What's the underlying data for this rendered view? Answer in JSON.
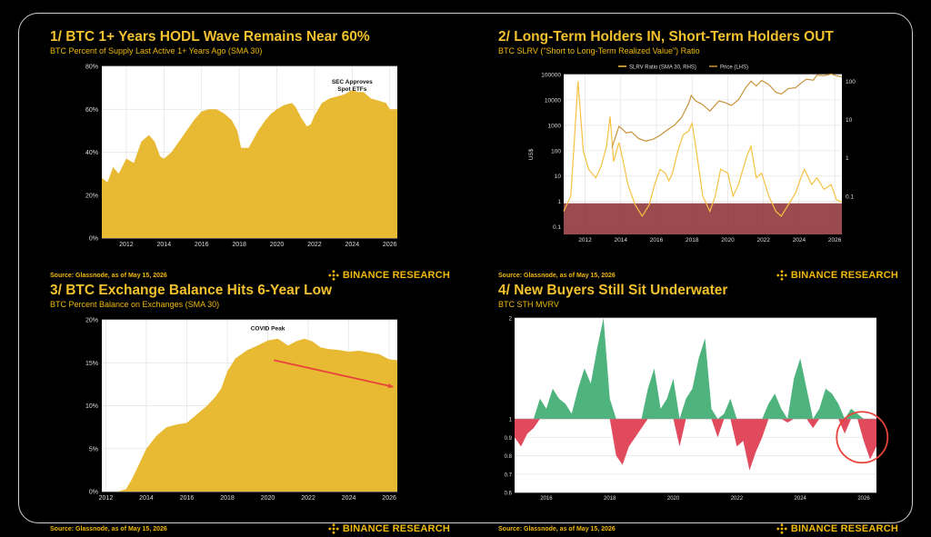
{
  "brand": {
    "name": "BINANCE RESEARCH",
    "gold": "#F0B90B"
  },
  "panels": [
    {
      "title": "1/ BTC 1+ Years HODL Wave Remains Near 60%",
      "subtitle": "BTC Percent of Supply Last Active 1+ Years Ago (SMA 30)",
      "source": "Source: Glassnode, as of May 15, 2026"
    },
    {
      "title": "2/ Long-Term Holders IN, Short-Term Holders OUT",
      "subtitle": "BTC SLRV (\"Short to Long-Term Realized Value\") Ratio",
      "source": "Source: Glassnode, as of May 15, 2026"
    },
    {
      "title": "3/ BTC Exchange Balance Hits 6-Year Low",
      "subtitle": "BTC Percent Balance on Exchanges (SMA 30)",
      "source": "Source: Glassnode, as of May 15, 2026"
    },
    {
      "title": "4/ New Buyers Still Sit Underwater",
      "subtitle": "BTC STH MVRV",
      "source": "Source: Glassnode, as of May 15, 2026"
    }
  ],
  "chart_data": [
    {
      "type": "area",
      "xlim": [
        2010.7,
        2026.4
      ],
      "ylim": [
        0,
        80
      ],
      "yticks": [
        0,
        20,
        40,
        60,
        80
      ],
      "ytick_labels": [
        "0%",
        "20%",
        "40%",
        "60%",
        "80%"
      ],
      "xtick_labels": [
        "2012",
        "2014",
        "2016",
        "2018",
        "2020",
        "2022",
        "2024",
        "2026"
      ],
      "grid": true,
      "color": "#E8B932",
      "annotation": {
        "text": [
          "SEC Approves",
          "Spot ETFs"
        ],
        "x": 2024.0,
        "y": 72
      },
      "x": [
        2010.7,
        2011.0,
        2011.3,
        2011.6,
        2012.0,
        2012.4,
        2012.8,
        2013.2,
        2013.5,
        2013.8,
        2014.0,
        2014.4,
        2014.8,
        2015.2,
        2015.6,
        2016.0,
        2016.4,
        2016.8,
        2017.2,
        2017.6,
        2017.9,
        2018.1,
        2018.5,
        2019.0,
        2019.4,
        2019.7,
        2020.0,
        2020.4,
        2020.8,
        2021.0,
        2021.3,
        2021.6,
        2021.8,
        2022.0,
        2022.4,
        2022.8,
        2023.2,
        2023.6,
        2024.0,
        2024.3,
        2024.6,
        2025.0,
        2025.4,
        2025.8,
        2026.0,
        2026.4
      ],
      "values": [
        28,
        26,
        33,
        30,
        37,
        35,
        45,
        48,
        45,
        38,
        37,
        40,
        45,
        50,
        55,
        59,
        60,
        60,
        58,
        55,
        50,
        42,
        42,
        50,
        55,
        58,
        60,
        62,
        63,
        61,
        56,
        52,
        53,
        57,
        63,
        65,
        66,
        67,
        69,
        68,
        68,
        65,
        64,
        63,
        60,
        60
      ]
    },
    {
      "type": "line",
      "xlim": [
        2010.8,
        2026.4
      ],
      "ylabel": "US$",
      "left_yscale": "log",
      "left_ylim": [
        0.05,
        100000
      ],
      "left_yticks": [
        0.1,
        1,
        10,
        100,
        1000,
        10000,
        100000
      ],
      "left_ytick_labels": [
        "0.1",
        "1",
        "10",
        "100",
        "1000",
        "10000",
        "100000"
      ],
      "right_yscale": "log",
      "right_ylim": [
        0.01,
        150
      ],
      "right_yticks": [
        0.1,
        1,
        10,
        100
      ],
      "right_ytick_labels": [
        "0.1",
        "1",
        "10",
        "100"
      ],
      "xtick_labels": [
        "2012",
        "2014",
        "2016",
        "2018",
        "2020",
        "2022",
        "2024",
        "2026"
      ],
      "legend_placement": "top",
      "band": {
        "right_from": 0.01,
        "right_to": 0.065,
        "color": "#8a2a30"
      },
      "series": [
        {
          "name": "SLRV Ratio (SMA 30, RHS)",
          "axis": "right",
          "color": "#F5C242",
          "x": [
            2010.8,
            2011.2,
            2011.4,
            2011.6,
            2011.9,
            2012.2,
            2012.6,
            2012.9,
            2013.2,
            2013.4,
            2013.6,
            2013.9,
            2014.1,
            2014.4,
            2014.8,
            2015.2,
            2015.6,
            2015.9,
            2016.2,
            2016.5,
            2016.7,
            2016.9,
            2017.2,
            2017.5,
            2017.8,
            2018.0,
            2018.2,
            2018.6,
            2019.0,
            2019.3,
            2019.6,
            2020.0,
            2020.3,
            2020.6,
            2020.9,
            2021.1,
            2021.3,
            2021.6,
            2021.9,
            2022.3,
            2022.7,
            2023.0,
            2023.4,
            2023.8,
            2024.1,
            2024.3,
            2024.7,
            2025.0,
            2025.4,
            2025.8,
            2026.1,
            2026.4
          ],
          "values": [
            0.04,
            0.1,
            3.0,
            100.0,
            1.5,
            0.5,
            0.3,
            0.6,
            2.0,
            12.0,
            0.8,
            2.5,
            1.0,
            0.2,
            0.06,
            0.03,
            0.06,
            0.2,
            0.5,
            0.4,
            0.25,
            0.4,
            1.5,
            4.0,
            5.0,
            8.0,
            2.0,
            0.1,
            0.04,
            0.1,
            0.5,
            0.4,
            0.1,
            0.2,
            0.6,
            1.2,
            2.0,
            0.3,
            0.4,
            0.1,
            0.04,
            0.03,
            0.06,
            0.12,
            0.3,
            0.5,
            0.2,
            0.3,
            0.15,
            0.2,
            0.08,
            0.07
          ]
        },
        {
          "name": "Price (LHS)",
          "axis": "left",
          "color": "#C8923A",
          "x": [
            2013.5,
            2013.9,
            2014.0,
            2014.3,
            2014.6,
            2015.0,
            2015.4,
            2015.8,
            2016.2,
            2016.6,
            2017.0,
            2017.4,
            2017.8,
            2017.95,
            2018.2,
            2018.6,
            2019.0,
            2019.5,
            2019.8,
            2020.2,
            2020.6,
            2021.0,
            2021.3,
            2021.6,
            2021.9,
            2022.3,
            2022.7,
            2023.0,
            2023.4,
            2023.8,
            2024.1,
            2024.4,
            2024.8,
            2025.0,
            2025.4,
            2025.8,
            2026.1,
            2026.4
          ],
          "values": [
            130,
            900,
            800,
            500,
            550,
            300,
            240,
            280,
            400,
            650,
            1000,
            2000,
            7000,
            15000,
            9000,
            6500,
            3600,
            9000,
            8000,
            6000,
            10000,
            30000,
            55000,
            35000,
            58000,
            40000,
            20000,
            17000,
            28000,
            30000,
            45000,
            65000,
            60000,
            95000,
            90000,
            105000,
            90000,
            80000
          ]
        }
      ]
    },
    {
      "type": "area",
      "xlim": [
        2011.8,
        2026.4
      ],
      "ylim": [
        0,
        20
      ],
      "yticks": [
        0,
        5,
        10,
        15,
        20
      ],
      "ytick_labels": [
        "0%",
        "5%",
        "10%",
        "15%",
        "20%"
      ],
      "xtick_labels": [
        "2012",
        "2014",
        "2016",
        "2018",
        "2020",
        "2022",
        "2024",
        "2026"
      ],
      "grid": true,
      "color": "#E8B932",
      "annotation": {
        "text": [
          "COVID Peak"
        ],
        "x": 2020.0,
        "y": 18.8
      },
      "arrow": {
        "from": [
          2020.3,
          15.3
        ],
        "to": [
          2026.2,
          12.2
        ],
        "color": "#E8433A"
      },
      "x": [
        2011.8,
        2012.6,
        2013.0,
        2013.3,
        2013.6,
        2014.0,
        2014.5,
        2015.0,
        2015.5,
        2016.0,
        2016.5,
        2017.0,
        2017.4,
        2017.7,
        2018.0,
        2018.4,
        2019.0,
        2019.5,
        2020.0,
        2020.5,
        2021.0,
        2021.4,
        2021.8,
        2022.2,
        2022.6,
        2023.0,
        2023.5,
        2024.0,
        2024.5,
        2025.0,
        2025.5,
        2026.0,
        2026.4
      ],
      "values": [
        0,
        0,
        0.3,
        1.5,
        3.0,
        5.0,
        6.5,
        7.5,
        7.8,
        8.0,
        9.0,
        10.0,
        11.0,
        12.0,
        14.0,
        15.5,
        16.5,
        17.0,
        17.6,
        17.8,
        17.0,
        17.5,
        17.8,
        17.5,
        16.8,
        16.6,
        16.5,
        16.3,
        16.4,
        16.2,
        16.0,
        15.4,
        15.3
      ]
    },
    {
      "type": "area",
      "xlim": [
        2015.0,
        2026.4
      ],
      "ylim": [
        0.6,
        2.0
      ],
      "baseline": 1.0,
      "yticks": [
        0.6,
        0.7,
        0.8,
        0.9,
        1.0,
        2.0
      ],
      "ytick_labels": [
        "0.6",
        "0.7",
        "0.8",
        "0.9",
        "1",
        "2"
      ],
      "xtick_labels": [
        "2016",
        "2018",
        "2020",
        "2022",
        "2024",
        "2026"
      ],
      "grid": true,
      "above_color": "#4FB37E",
      "below_color": "#E04A5C",
      "highlight_circle": {
        "x": 2025.95,
        "y": 0.9,
        "color": "#E8433A"
      },
      "x": [
        2015.0,
        2015.2,
        2015.4,
        2015.6,
        2015.8,
        2016.0,
        2016.2,
        2016.4,
        2016.6,
        2016.8,
        2017.0,
        2017.2,
        2017.4,
        2017.6,
        2017.8,
        2018.0,
        2018.2,
        2018.4,
        2018.6,
        2018.8,
        2019.0,
        2019.2,
        2019.4,
        2019.6,
        2019.8,
        2020.0,
        2020.2,
        2020.4,
        2020.6,
        2020.8,
        2021.0,
        2021.2,
        2021.4,
        2021.6,
        2021.8,
        2022.0,
        2022.2,
        2022.4,
        2022.6,
        2022.8,
        2023.0,
        2023.2,
        2023.4,
        2023.6,
        2023.8,
        2024.0,
        2024.2,
        2024.4,
        2024.6,
        2024.8,
        2025.0,
        2025.2,
        2025.4,
        2025.6,
        2025.8,
        2026.0,
        2026.2,
        2026.4
      ],
      "values": [
        0.9,
        0.85,
        0.92,
        0.95,
        1.2,
        1.1,
        1.3,
        1.2,
        1.15,
        1.05,
        1.3,
        1.5,
        1.35,
        1.7,
        2.0,
        1.2,
        0.8,
        0.75,
        0.85,
        0.9,
        0.95,
        1.3,
        1.5,
        1.1,
        1.2,
        1.4,
        0.85,
        1.2,
        1.3,
        1.6,
        1.8,
        1.1,
        0.9,
        1.05,
        1.2,
        0.85,
        0.88,
        0.72,
        0.82,
        0.9,
        1.15,
        1.25,
        1.1,
        0.98,
        1.4,
        1.6,
        1.3,
        0.95,
        1.1,
        1.3,
        1.25,
        1.15,
        0.92,
        1.1,
        1.05,
        0.88,
        0.78,
        0.85
      ]
    }
  ]
}
